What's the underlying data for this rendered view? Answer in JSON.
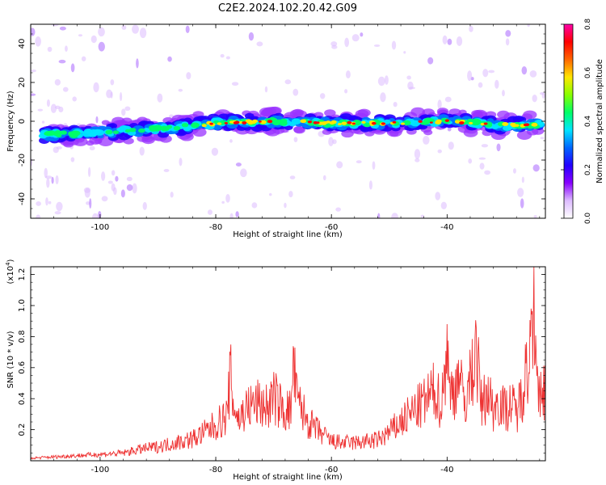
{
  "title": "C2E2.2024.102.20.42.G09",
  "chart_data": [
    {
      "type": "heatmap",
      "xlabel": "Height of straight line (km)",
      "ylabel": "Frequency (Hz)",
      "xlim": [
        -112,
        -23
      ],
      "ylim": [
        -50,
        50
      ],
      "x_ticks": [
        "-100",
        "-80",
        "-60",
        "-40"
      ],
      "x_tick_values": [
        -100,
        -80,
        -60,
        -40
      ],
      "y_ticks": [
        "40",
        "20",
        "0",
        "-20",
        "-40"
      ],
      "y_tick_values": [
        40,
        20,
        0,
        -20,
        -40
      ],
      "colorbar": {
        "label": "Normalized spectral amplitude",
        "range": [
          0.0,
          0.8
        ],
        "ticks": [
          "0.0",
          "0.2",
          "0.4",
          "0.6",
          "0.8"
        ],
        "tick_values": [
          0.0,
          0.2,
          0.4,
          0.6,
          0.8
        ],
        "colormap": [
          "#ffffff",
          "#ddbbff",
          "#8800ff",
          "#2200ff",
          "#0066ff",
          "#00e5ff",
          "#00ff66",
          "#88ff00",
          "#ffe600",
          "#ff6600",
          "#ff0000",
          "#ff00aa"
        ]
      },
      "ridge": {
        "description_values": "dominant frequency band near 0 Hz",
        "x": [
          -110,
          -100,
          -90,
          -80,
          -70,
          -60,
          -50,
          -40,
          -30,
          -24
        ],
        "frequency": [
          -7,
          -6,
          -4,
          -1,
          0,
          -1,
          -1,
          0,
          -2,
          -2
        ]
      }
    },
    {
      "type": "line",
      "xlabel": "Height of straight line (km)",
      "ylabel": "SNR (10 * v/v)",
      "y_scale_label": "(x10",
      "y_scale_exp": "4",
      "y_scale_close": ")",
      "xlim": [
        -112,
        -23
      ],
      "ylim": [
        0,
        1.25
      ],
      "x_ticks": [
        "-100",
        "-80",
        "-60",
        "-40"
      ],
      "x_tick_values": [
        -100,
        -80,
        -60,
        -40
      ],
      "y_ticks": [
        "0.2",
        "0.4",
        "0.6",
        "0.8",
        "1.0",
        "1.2"
      ],
      "y_tick_values": [
        0.2,
        0.4,
        0.6,
        0.8,
        1.0,
        1.2
      ],
      "color": "#ee3333",
      "series": [
        {
          "x": [
            -112,
            -108,
            -104,
            -100,
            -96,
            -93,
            -90,
            -87,
            -84,
            -82,
            -80,
            -78,
            -77.5,
            -77,
            -76,
            -75,
            -73,
            -71,
            -70,
            -68,
            -67,
            -66.5,
            -66,
            -64,
            -62,
            -60,
            -58,
            -56,
            -54,
            -52,
            -50,
            -48,
            -46,
            -44,
            -42,
            -41,
            -40,
            -39.5,
            -38,
            -37,
            -36,
            -35,
            -34,
            -33,
            -32,
            -31,
            -30,
            -29,
            -28,
            -27,
            -26.5,
            -26,
            -25.5,
            -25,
            -24.5,
            -24,
            -23.5,
            -23
          ],
          "values": [
            0.02,
            0.03,
            0.04,
            0.05,
            0.06,
            0.09,
            0.11,
            0.14,
            0.17,
            0.22,
            0.28,
            0.35,
            0.68,
            0.45,
            0.32,
            0.4,
            0.45,
            0.42,
            0.5,
            0.38,
            0.4,
            0.72,
            0.48,
            0.3,
            0.22,
            0.15,
            0.14,
            0.14,
            0.15,
            0.16,
            0.22,
            0.3,
            0.38,
            0.45,
            0.55,
            0.42,
            0.88,
            0.5,
            0.65,
            0.45,
            0.62,
            0.86,
            0.42,
            0.55,
            0.4,
            0.48,
            0.4,
            0.44,
            0.38,
            0.52,
            0.75,
            0.6,
            0.98,
            1.26,
            0.55,
            0.45,
            0.58,
            0.55
          ]
        }
      ]
    }
  ]
}
